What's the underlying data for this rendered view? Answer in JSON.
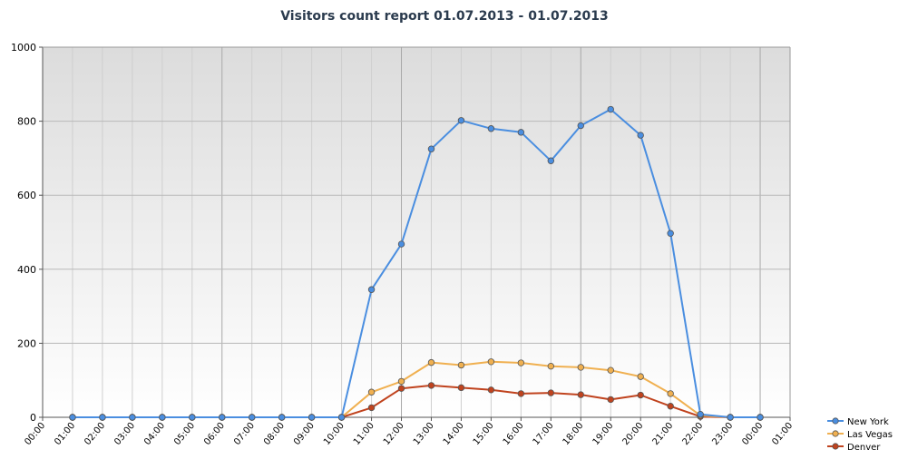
{
  "chart_data": {
    "type": "line",
    "title": "Visitors count report 01.07.2013 - 01.07.2013",
    "xlabel": "",
    "ylabel": "",
    "ylim": [
      0,
      1000
    ],
    "y_ticks": [
      "0",
      "200",
      "400",
      "600",
      "800",
      "1000"
    ],
    "x_tick_labels": [
      "00:00",
      "01:00",
      "02:00",
      "03:00",
      "04:00",
      "05:00",
      "06:00",
      "07:00",
      "08:00",
      "09:00",
      "10:00",
      "11:00",
      "12:00",
      "13:00",
      "14:00",
      "15:00",
      "16:00",
      "17:00",
      "18:00",
      "19:00",
      "20:00",
      "21:00",
      "22:00",
      "23:00",
      "00:00",
      "01:00"
    ],
    "categories": [
      "01:00",
      "02:00",
      "03:00",
      "04:00",
      "05:00",
      "06:00",
      "07:00",
      "08:00",
      "09:00",
      "10:00",
      "11:00",
      "12:00",
      "13:00",
      "14:00",
      "15:00",
      "16:00",
      "17:00",
      "18:00",
      "19:00",
      "20:00",
      "21:00",
      "22:00",
      "23:00",
      "00:00"
    ],
    "grid": true,
    "legend_position": "bottom-right",
    "series": [
      {
        "name": "New York",
        "color": "#4a8ee0",
        "values": [
          0,
          0,
          0,
          0,
          0,
          0,
          0,
          0,
          0,
          0,
          345,
          468,
          725,
          802,
          780,
          770,
          693,
          788,
          832,
          762,
          497,
          8,
          0,
          0
        ]
      },
      {
        "name": "Las Vegas",
        "color": "#f0b050",
        "values": [
          0,
          0,
          0,
          0,
          0,
          0,
          0,
          0,
          0,
          0,
          68,
          97,
          148,
          141,
          150,
          147,
          138,
          135,
          127,
          110,
          64,
          5,
          0,
          0
        ]
      },
      {
        "name": "Denver",
        "color": "#c0431e",
        "values": [
          0,
          0,
          0,
          0,
          0,
          0,
          0,
          0,
          0,
          0,
          26,
          78,
          86,
          80,
          74,
          64,
          66,
          61,
          48,
          60,
          30,
          2,
          0,
          0
        ]
      }
    ]
  }
}
